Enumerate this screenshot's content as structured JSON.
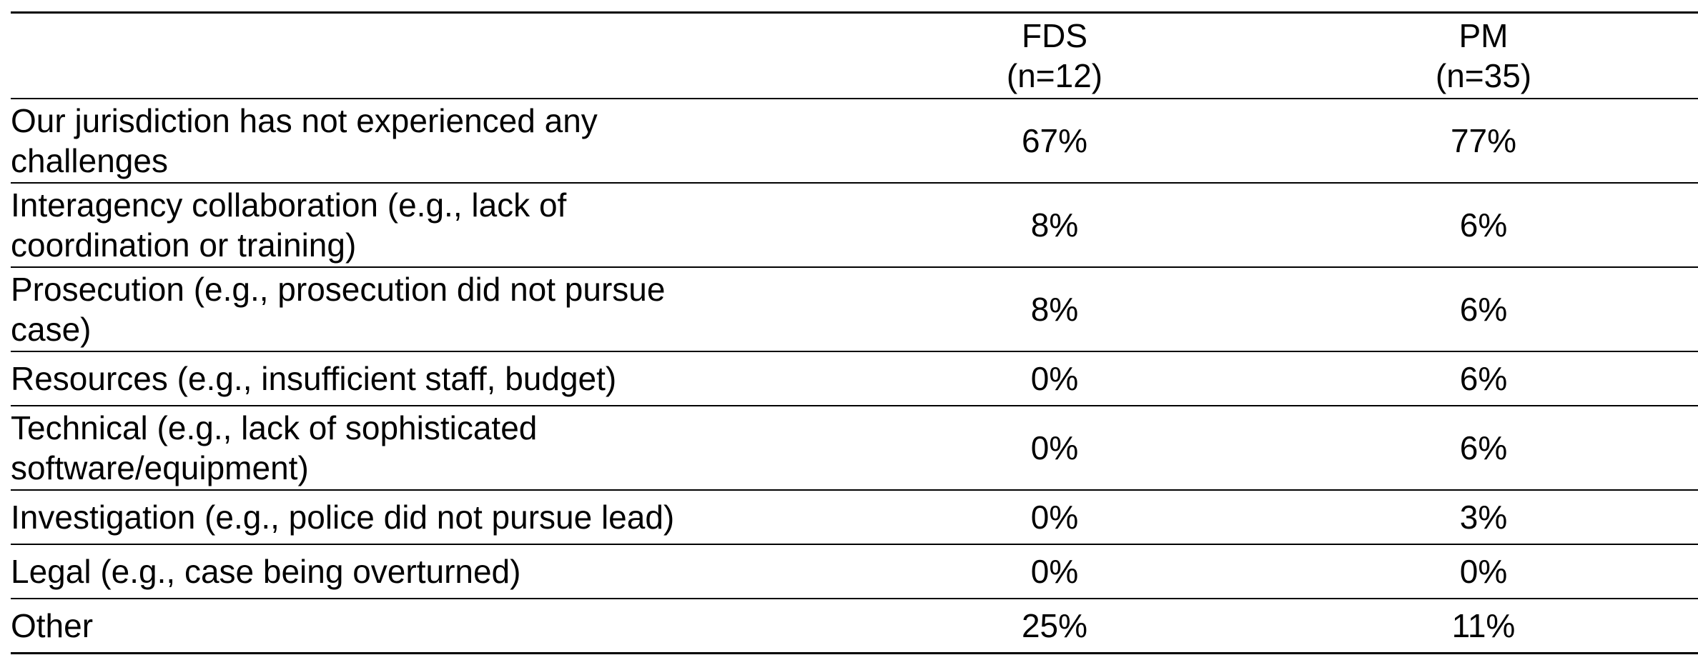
{
  "table": {
    "columns": [
      {
        "name": "FDS",
        "n": "(n=12)"
      },
      {
        "name": "PM",
        "n": "(n=35)"
      }
    ],
    "rows": [
      {
        "label_lines": [
          "Our jurisdiction has not experienced any",
          "challenges"
        ],
        "fds": "67%",
        "pm": "77%"
      },
      {
        "label_lines": [
          "Interagency collaboration (e.g., lack of",
          "coordination or training)"
        ],
        "fds": "8%",
        "pm": "6%"
      },
      {
        "label_lines": [
          "Prosecution (e.g., prosecution did not pursue",
          "case)"
        ],
        "fds": "8%",
        "pm": "6%"
      },
      {
        "label_lines": [
          "Resources (e.g., insufficient staff, budget)"
        ],
        "fds": "0%",
        "pm": "6%"
      },
      {
        "label_lines": [
          "Technical (e.g., lack of sophisticated",
          "software/equipment)"
        ],
        "fds": "0%",
        "pm": "6%"
      },
      {
        "label_lines": [
          "Investigation (e.g., police did not pursue lead)"
        ],
        "fds": "0%",
        "pm": "3%"
      },
      {
        "label_lines": [
          "Legal (e.g., case being overturned)"
        ],
        "fds": "0%",
        "pm": "0%"
      },
      {
        "label_lines": [
          "Other"
        ],
        "fds": "25%",
        "pm": "11%"
      }
    ]
  }
}
